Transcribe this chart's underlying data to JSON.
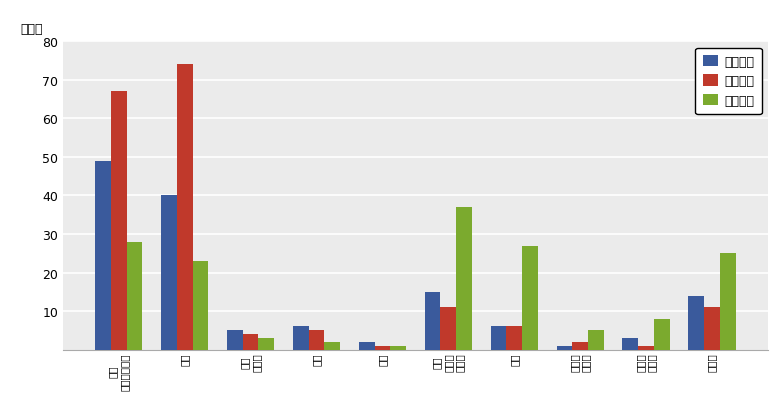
{
  "categories": [
    "就職\n・転職・転業",
    "転勤",
    "退職\n・廃業",
    "就学",
    "卒業",
    "結婚\n・離婚\n・縁組",
    "住宅",
    "交通の\n利便性",
    "生活の\n利便性",
    "その他"
  ],
  "series": {
    "県外転入": [
      49,
      40,
      5,
      6,
      2,
      15,
      6,
      1,
      3,
      14
    ],
    "県外転出": [
      67,
      74,
      4,
      5,
      1,
      11,
      6,
      2,
      1,
      11
    ],
    "県内移動": [
      28,
      23,
      3,
      2,
      1,
      37,
      27,
      5,
      8,
      25
    ]
  },
  "colors": {
    "県外転入": "#3a5a9c",
    "県外転出": "#c0392b",
    "県内移動": "#7baa2e"
  },
  "ylabel": "（人）",
  "ylim": [
    0,
    80
  ],
  "yticks": [
    10,
    20,
    30,
    40,
    50,
    60,
    70,
    80
  ],
  "legend_order": [
    "県外転入",
    "県外転出",
    "県内移動"
  ],
  "background_color": "#ffffff",
  "grid_color": "#cccccc",
  "fig_bg": "#ffffff"
}
